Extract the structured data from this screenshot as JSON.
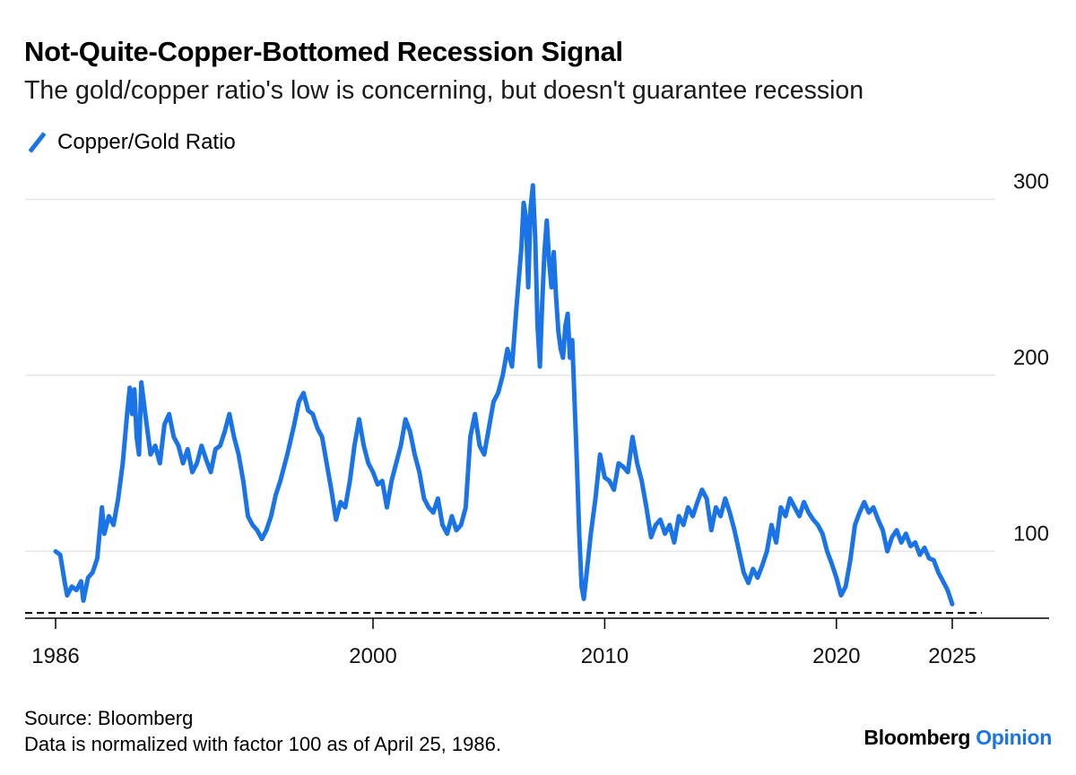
{
  "header": {
    "title": "Not-Quite-Copper-Bottomed Recession Signal",
    "subtitle": "The gold/copper ratio's low is concerning, but doesn't guarantee recession"
  },
  "footer": {
    "source": "Source: Bloomberg",
    "note": "Data is normalized with factor 100 as of April 25, 1986.",
    "brand_main": "Bloomberg",
    "brand_accent": "Opinion"
  },
  "colors": {
    "series": "#1a74e8",
    "grid": "#e6e6e6",
    "axis": "#000000",
    "reference": "#000000"
  },
  "chart_data": {
    "type": "line",
    "title": "Not-Quite-Copper-Bottomed Recession Signal",
    "subtitle": "The gold/copper ratio's low is concerning, but doesn't guarantee recession",
    "xlabel": "",
    "ylabel": "",
    "xlim": [
      1986.3,
      2026.2
    ],
    "ylim": [
      62,
      314
    ],
    "x_ticks": [
      {
        "value": 1986.3,
        "label": "1986"
      },
      {
        "value": 2000,
        "label": "2000"
      },
      {
        "value": 2010,
        "label": "2010"
      },
      {
        "value": 2020,
        "label": "2020"
      },
      {
        "value": 2025,
        "label": "2025"
      }
    ],
    "y_ticks": [
      100,
      200,
      300
    ],
    "grid": true,
    "legend_position": "top-left",
    "reference_line": {
      "value": 65,
      "style": "dashed",
      "label": ""
    },
    "series": [
      {
        "name": "Copper/Gold Ratio",
        "points": [
          [
            1986.3,
            100
          ],
          [
            1986.5,
            98
          ],
          [
            1986.7,
            82
          ],
          [
            1986.8,
            75
          ],
          [
            1987.0,
            80
          ],
          [
            1987.2,
            78
          ],
          [
            1987.4,
            83
          ],
          [
            1987.5,
            72
          ],
          [
            1987.7,
            85
          ],
          [
            1987.9,
            88
          ],
          [
            1988.1,
            96
          ],
          [
            1988.3,
            125
          ],
          [
            1988.4,
            110
          ],
          [
            1988.6,
            120
          ],
          [
            1988.8,
            115
          ],
          [
            1989.0,
            130
          ],
          [
            1989.2,
            150
          ],
          [
            1989.4,
            180
          ],
          [
            1989.5,
            193
          ],
          [
            1989.6,
            178
          ],
          [
            1989.7,
            192
          ],
          [
            1989.8,
            165
          ],
          [
            1989.9,
            155
          ],
          [
            1990.0,
            196
          ],
          [
            1990.2,
            175
          ],
          [
            1990.4,
            155
          ],
          [
            1990.6,
            160
          ],
          [
            1990.8,
            150
          ],
          [
            1991.0,
            172
          ],
          [
            1991.2,
            178
          ],
          [
            1991.4,
            165
          ],
          [
            1991.6,
            160
          ],
          [
            1991.8,
            150
          ],
          [
            1992.0,
            158
          ],
          [
            1992.2,
            145
          ],
          [
            1992.4,
            150
          ],
          [
            1992.6,
            160
          ],
          [
            1992.8,
            152
          ],
          [
            1993.0,
            145
          ],
          [
            1993.2,
            158
          ],
          [
            1993.4,
            160
          ],
          [
            1993.6,
            168
          ],
          [
            1993.8,
            178
          ],
          [
            1994.0,
            165
          ],
          [
            1994.2,
            155
          ],
          [
            1994.4,
            140
          ],
          [
            1994.6,
            120
          ],
          [
            1994.8,
            115
          ],
          [
            1995.0,
            112
          ],
          [
            1995.2,
            107
          ],
          [
            1995.4,
            112
          ],
          [
            1995.6,
            120
          ],
          [
            1995.8,
            132
          ],
          [
            1996.0,
            140
          ],
          [
            1996.3,
            155
          ],
          [
            1996.6,
            172
          ],
          [
            1996.8,
            185
          ],
          [
            1997.0,
            190
          ],
          [
            1997.2,
            180
          ],
          [
            1997.4,
            178
          ],
          [
            1997.6,
            170
          ],
          [
            1997.8,
            165
          ],
          [
            1998.0,
            150
          ],
          [
            1998.2,
            135
          ],
          [
            1998.4,
            118
          ],
          [
            1998.6,
            128
          ],
          [
            1998.8,
            125
          ],
          [
            1999.0,
            140
          ],
          [
            1999.2,
            160
          ],
          [
            1999.4,
            175
          ],
          [
            1999.6,
            160
          ],
          [
            1999.8,
            150
          ],
          [
            2000.0,
            145
          ],
          [
            2000.2,
            138
          ],
          [
            2000.4,
            140
          ],
          [
            2000.6,
            125
          ],
          [
            2000.8,
            140
          ],
          [
            2001.0,
            150
          ],
          [
            2001.2,
            160
          ],
          [
            2001.4,
            175
          ],
          [
            2001.6,
            168
          ],
          [
            2001.8,
            155
          ],
          [
            2002.0,
            145
          ],
          [
            2002.2,
            130
          ],
          [
            2002.4,
            125
          ],
          [
            2002.6,
            122
          ],
          [
            2002.8,
            130
          ],
          [
            2003.0,
            115
          ],
          [
            2003.2,
            110
          ],
          [
            2003.4,
            120
          ],
          [
            2003.6,
            112
          ],
          [
            2003.8,
            115
          ],
          [
            2004.0,
            125
          ],
          [
            2004.2,
            165
          ],
          [
            2004.4,
            178
          ],
          [
            2004.6,
            160
          ],
          [
            2004.8,
            155
          ],
          [
            2005.0,
            170
          ],
          [
            2005.2,
            185
          ],
          [
            2005.4,
            190
          ],
          [
            2005.6,
            200
          ],
          [
            2005.8,
            215
          ],
          [
            2006.0,
            205
          ],
          [
            2006.2,
            240
          ],
          [
            2006.4,
            272
          ],
          [
            2006.5,
            298
          ],
          [
            2006.6,
            290
          ],
          [
            2006.7,
            250
          ],
          [
            2006.8,
            295
          ],
          [
            2006.9,
            308
          ],
          [
            2007.0,
            278
          ],
          [
            2007.1,
            228
          ],
          [
            2007.2,
            205
          ],
          [
            2007.3,
            240
          ],
          [
            2007.4,
            270
          ],
          [
            2007.5,
            288
          ],
          [
            2007.6,
            265
          ],
          [
            2007.7,
            250
          ],
          [
            2007.8,
            270
          ],
          [
            2007.9,
            245
          ],
          [
            2008.0,
            225
          ],
          [
            2008.1,
            215
          ],
          [
            2008.2,
            210
          ],
          [
            2008.3,
            228
          ],
          [
            2008.4,
            235
          ],
          [
            2008.5,
            210
          ],
          [
            2008.6,
            220
          ],
          [
            2008.7,
            185
          ],
          [
            2008.8,
            150
          ],
          [
            2008.9,
            110
          ],
          [
            2009.0,
            80
          ],
          [
            2009.1,
            73
          ],
          [
            2009.2,
            85
          ],
          [
            2009.4,
            110
          ],
          [
            2009.6,
            130
          ],
          [
            2009.8,
            155
          ],
          [
            2010.0,
            142
          ],
          [
            2010.2,
            140
          ],
          [
            2010.4,
            135
          ],
          [
            2010.6,
            150
          ],
          [
            2010.8,
            148
          ],
          [
            2011.0,
            145
          ],
          [
            2011.2,
            165
          ],
          [
            2011.4,
            150
          ],
          [
            2011.6,
            140
          ],
          [
            2011.8,
            125
          ],
          [
            2012.0,
            108
          ],
          [
            2012.2,
            115
          ],
          [
            2012.4,
            118
          ],
          [
            2012.6,
            110
          ],
          [
            2012.8,
            115
          ],
          [
            2013.0,
            105
          ],
          [
            2013.2,
            120
          ],
          [
            2013.4,
            115
          ],
          [
            2013.6,
            125
          ],
          [
            2013.8,
            120
          ],
          [
            2014.0,
            128
          ],
          [
            2014.2,
            135
          ],
          [
            2014.4,
            130
          ],
          [
            2014.6,
            112
          ],
          [
            2014.8,
            125
          ],
          [
            2015.0,
            120
          ],
          [
            2015.2,
            130
          ],
          [
            2015.4,
            122
          ],
          [
            2015.6,
            112
          ],
          [
            2015.8,
            100
          ],
          [
            2016.0,
            88
          ],
          [
            2016.2,
            82
          ],
          [
            2016.4,
            90
          ],
          [
            2016.6,
            85
          ],
          [
            2016.8,
            92
          ],
          [
            2017.0,
            100
          ],
          [
            2017.2,
            115
          ],
          [
            2017.4,
            105
          ],
          [
            2017.6,
            125
          ],
          [
            2017.8,
            120
          ],
          [
            2018.0,
            130
          ],
          [
            2018.2,
            125
          ],
          [
            2018.4,
            120
          ],
          [
            2018.6,
            128
          ],
          [
            2018.8,
            122
          ],
          [
            2019.0,
            118
          ],
          [
            2019.2,
            115
          ],
          [
            2019.4,
            110
          ],
          [
            2019.6,
            100
          ],
          [
            2019.8,
            93
          ],
          [
            2020.0,
            85
          ],
          [
            2020.2,
            75
          ],
          [
            2020.4,
            80
          ],
          [
            2020.6,
            95
          ],
          [
            2020.8,
            115
          ],
          [
            2021.0,
            122
          ],
          [
            2021.2,
            128
          ],
          [
            2021.4,
            122
          ],
          [
            2021.6,
            125
          ],
          [
            2021.8,
            118
          ],
          [
            2022.0,
            112
          ],
          [
            2022.2,
            100
          ],
          [
            2022.4,
            108
          ],
          [
            2022.6,
            112
          ],
          [
            2022.8,
            105
          ],
          [
            2023.0,
            110
          ],
          [
            2023.2,
            103
          ],
          [
            2023.4,
            105
          ],
          [
            2023.6,
            98
          ],
          [
            2023.8,
            102
          ],
          [
            2024.0,
            96
          ],
          [
            2024.2,
            95
          ],
          [
            2024.4,
            88
          ],
          [
            2024.6,
            83
          ],
          [
            2024.8,
            78
          ],
          [
            2025.0,
            70
          ]
        ]
      }
    ]
  }
}
